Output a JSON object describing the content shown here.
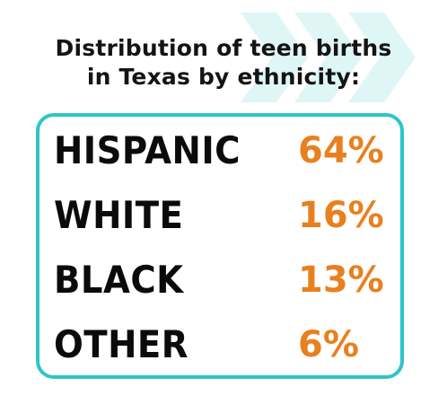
{
  "title": {
    "line1": "Distribution of teen births",
    "line2": "in Texas by ethnicity:"
  },
  "rows": [
    {
      "label": "HISPANIC",
      "value": "64%"
    },
    {
      "label": "WHITE",
      "value": "16%"
    },
    {
      "label": "BLACK",
      "value": "13%"
    },
    {
      "label": "OTHER",
      "value": "6%"
    }
  ],
  "colors": {
    "accent": "#e8801f",
    "border": "#2ec4c9",
    "chevron": "#dff6f7",
    "text": "#0b0b0b"
  },
  "decor": {
    "icon": "chevron-arrows-icon"
  }
}
